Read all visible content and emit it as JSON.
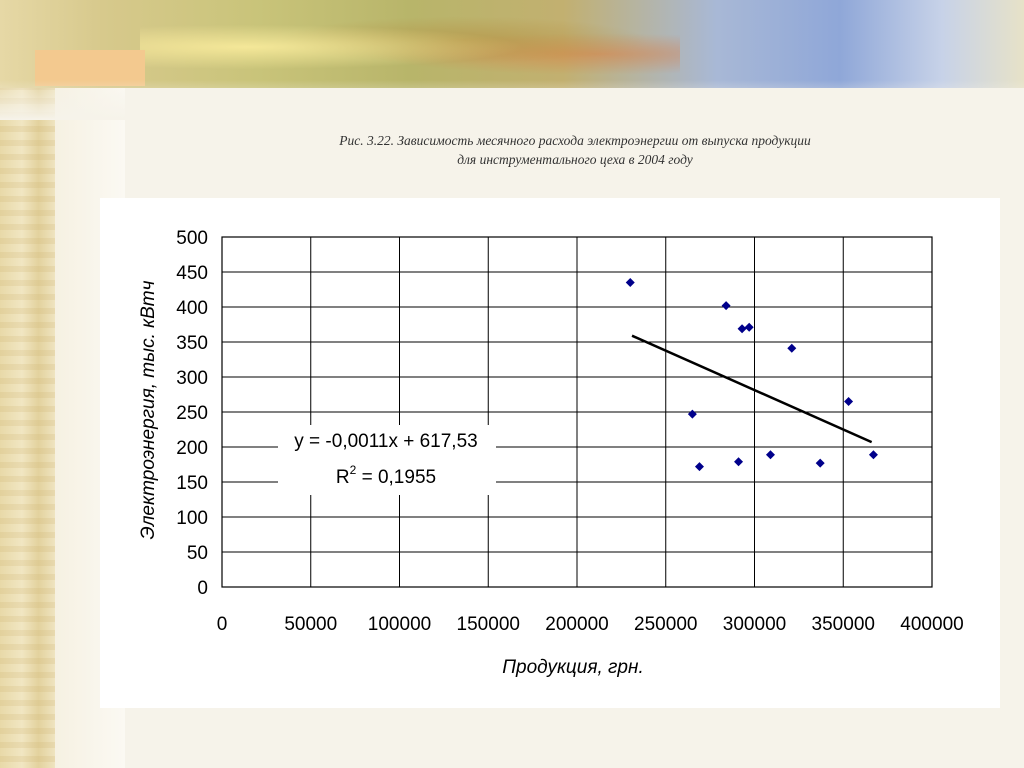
{
  "slide": {
    "caption_line1": "Рис. 3.22. Зависимость месячного расхода электроэнергии от выпуска продукции",
    "caption_line2": "для инструментального цеха в 2004 году"
  },
  "chart_data": {
    "type": "scatter",
    "xlabel": "Продукция, грн.",
    "ylabel": "Электроэнергия, тыс. кВтч",
    "xlim": [
      0,
      400000
    ],
    "ylim": [
      0,
      500
    ],
    "xticks": [
      0,
      50000,
      100000,
      150000,
      200000,
      250000,
      300000,
      350000,
      400000
    ],
    "yticks": [
      0,
      50,
      100,
      150,
      200,
      250,
      300,
      350,
      400,
      450,
      500
    ],
    "grid": true,
    "marker": "diamond",
    "marker_color": "#00008b",
    "points": [
      {
        "x": 230000,
        "y": 435
      },
      {
        "x": 265000,
        "y": 247
      },
      {
        "x": 269000,
        "y": 172
      },
      {
        "x": 284000,
        "y": 402
      },
      {
        "x": 291000,
        "y": 179
      },
      {
        "x": 293000,
        "y": 369
      },
      {
        "x": 297000,
        "y": 371
      },
      {
        "x": 309000,
        "y": 189
      },
      {
        "x": 321000,
        "y": 341
      },
      {
        "x": 337000,
        "y": 177
      },
      {
        "x": 353000,
        "y": 265
      },
      {
        "x": 367000,
        "y": 189
      }
    ],
    "trendline": {
      "x_start": 231000,
      "y_start": 359,
      "x_end": 366000,
      "y_end": 207,
      "color": "#000000",
      "equation": "y = -0,0011x + 617,53",
      "r2_prefix": "R",
      "r2_sup": "2",
      "r2_value": " = 0,1955"
    }
  }
}
